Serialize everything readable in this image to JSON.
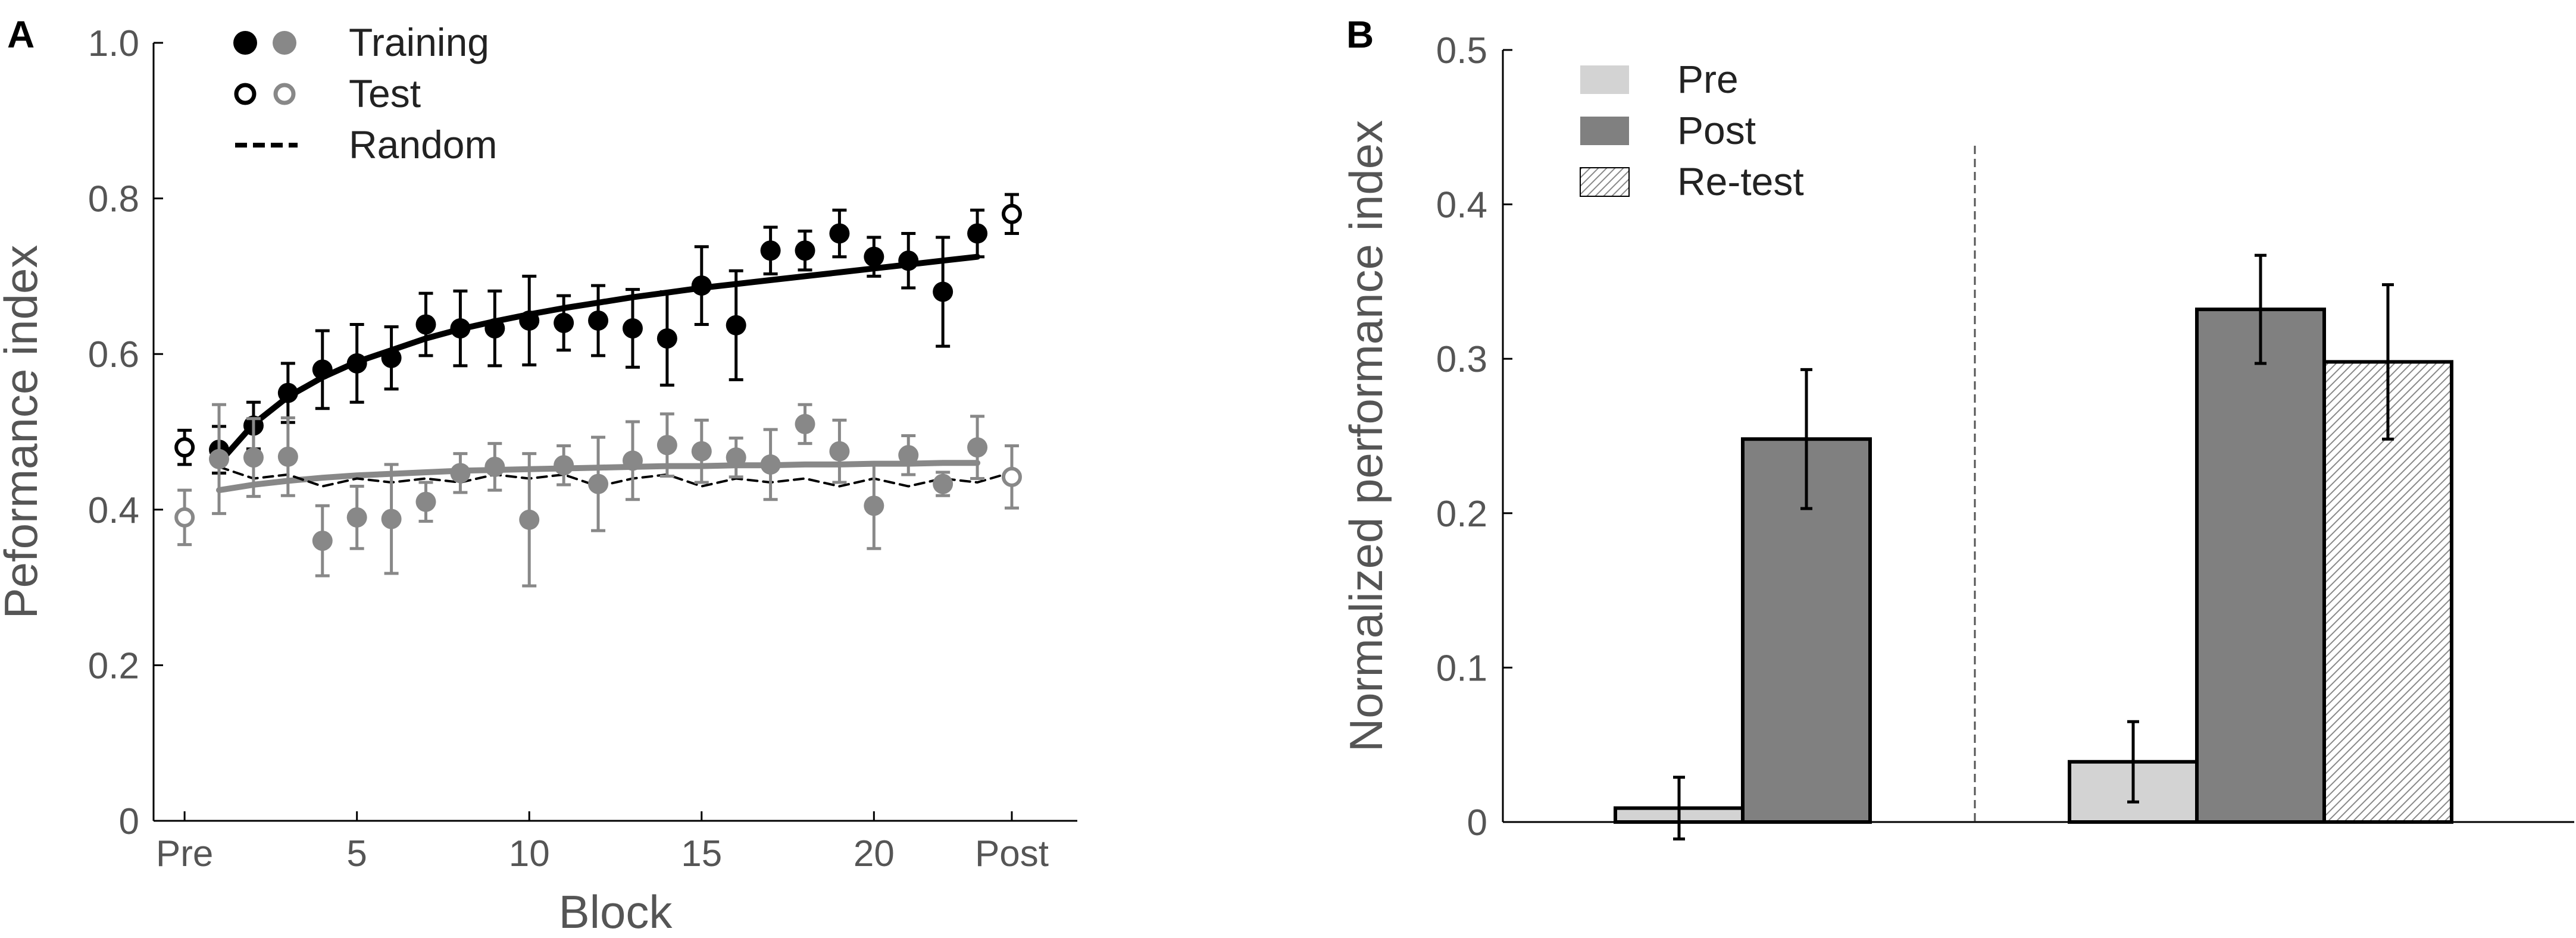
{
  "chart_data": [
    {
      "panel": "A",
      "type": "scatter",
      "xlabel": "Block",
      "ylabel": "Peformance index",
      "xlim": [
        -0.9,
        25.9
      ],
      "ylim": [
        0,
        1.0
      ],
      "xticks": [
        0,
        5,
        10,
        15,
        20,
        24
      ],
      "xtick_labels": [
        "Pre",
        "5",
        "10",
        "15",
        "20",
        "Post"
      ],
      "yticks": [
        0,
        0.2,
        0.4,
        0.6,
        0.8,
        1.0
      ],
      "ytick_labels": [
        "0",
        "0.2",
        "0.4",
        "0.6",
        "0.8",
        "1.0"
      ],
      "legend": [
        {
          "label": "Training",
          "marker": "filled",
          "colors": [
            "#000000",
            "#888888"
          ]
        },
        {
          "label": "Test",
          "marker": "open",
          "colors": [
            "#000000",
            "#888888"
          ]
        },
        {
          "label": "Random",
          "marker": "dashed-line",
          "colors": [
            "#000000"
          ]
        }
      ],
      "series": [
        {
          "name": "Training (black)",
          "color": "#000000",
          "marker": "filled",
          "x": [
            1,
            2,
            3,
            4,
            5,
            6,
            7,
            8,
            9,
            10,
            11,
            12,
            13,
            14,
            15,
            16,
            17,
            18,
            19,
            20,
            21,
            22,
            23
          ],
          "y": [
            0.477,
            0.508,
            0.55,
            0.58,
            0.588,
            0.595,
            0.638,
            0.633,
            0.633,
            0.643,
            0.64,
            0.643,
            0.633,
            0.62,
            0.688,
            0.637,
            0.733,
            0.733,
            0.755,
            0.725,
            0.72,
            0.68,
            0.755
          ],
          "err": [
            0.03,
            0.03,
            0.038,
            0.05,
            0.05,
            0.04,
            0.04,
            0.048,
            0.048,
            0.057,
            0.035,
            0.045,
            0.05,
            0.06,
            0.05,
            0.07,
            0.03,
            0.025,
            0.03,
            0.025,
            0.035,
            0.07,
            0.03
          ]
        },
        {
          "name": "Test (black)",
          "color": "#000000",
          "marker": "open",
          "x": [
            0,
            24
          ],
          "y": [
            0.48,
            0.78
          ],
          "err": [
            0.022,
            0.025
          ]
        },
        {
          "name": "Training (gray)",
          "color": "#888888",
          "marker": "filled",
          "x": [
            1,
            2,
            3,
            4,
            5,
            6,
            7,
            8,
            9,
            10,
            11,
            12,
            13,
            14,
            15,
            16,
            17,
            18,
            19,
            20,
            21,
            22,
            23
          ],
          "y": [
            0.465,
            0.467,
            0.468,
            0.36,
            0.39,
            0.388,
            0.41,
            0.447,
            0.455,
            0.387,
            0.457,
            0.433,
            0.463,
            0.483,
            0.475,
            0.467,
            0.458,
            0.51,
            0.475,
            0.405,
            0.47,
            0.433,
            0.48
          ],
          "err": [
            0.07,
            0.05,
            0.05,
            0.045,
            0.04,
            0.07,
            0.025,
            0.025,
            0.03,
            0.085,
            0.025,
            0.06,
            0.05,
            0.04,
            0.04,
            0.025,
            0.045,
            0.025,
            0.04,
            0.055,
            0.025,
            0.015,
            0.04
          ]
        },
        {
          "name": "Test (gray)",
          "color": "#888888",
          "marker": "open",
          "x": [
            0,
            24
          ],
          "y": [
            0.39,
            0.442
          ],
          "err": [
            0.035,
            0.04
          ]
        },
        {
          "name": "Fit (black)",
          "type": "line",
          "color": "#000000",
          "x": [
            1,
            2,
            3,
            4,
            5,
            6,
            7,
            8,
            9,
            10,
            11,
            12,
            13,
            14,
            15,
            16,
            17,
            18,
            19,
            20,
            21,
            22,
            23
          ],
          "y": [
            0.46,
            0.51,
            0.545,
            0.57,
            0.59,
            0.605,
            0.62,
            0.632,
            0.642,
            0.651,
            0.659,
            0.666,
            0.673,
            0.679,
            0.685,
            0.69,
            0.695,
            0.7,
            0.705,
            0.71,
            0.715,
            0.72,
            0.725
          ]
        },
        {
          "name": "Fit (gray)",
          "type": "line",
          "color": "#888888",
          "x": [
            1,
            2,
            3,
            4,
            5,
            6,
            7,
            8,
            9,
            10,
            11,
            12,
            13,
            14,
            15,
            16,
            17,
            18,
            19,
            20,
            21,
            22,
            23
          ],
          "y": [
            0.425,
            0.432,
            0.437,
            0.441,
            0.444,
            0.446,
            0.448,
            0.45,
            0.451,
            0.452,
            0.453,
            0.454,
            0.455,
            0.456,
            0.456,
            0.457,
            0.457,
            0.458,
            0.458,
            0.459,
            0.459,
            0.46,
            0.46
          ]
        },
        {
          "name": "Random",
          "type": "line",
          "color": "#000000",
          "style": "dashed",
          "x": [
            1,
            2,
            3,
            4,
            5,
            6,
            7,
            8,
            9,
            10,
            11,
            12,
            13,
            14,
            15,
            16,
            17,
            18,
            19,
            20,
            21,
            22,
            23,
            24
          ],
          "y": [
            0.455,
            0.44,
            0.445,
            0.43,
            0.44,
            0.435,
            0.44,
            0.435,
            0.445,
            0.44,
            0.445,
            0.43,
            0.44,
            0.445,
            0.43,
            0.44,
            0.435,
            0.44,
            0.43,
            0.44,
            0.43,
            0.44,
            0.435,
            0.448
          ]
        }
      ]
    },
    {
      "panel": "B",
      "type": "bar",
      "ylabel": "Normalized performance index",
      "ylim": [
        0,
        0.5
      ],
      "yticks": [
        0,
        0.1,
        0.2,
        0.3,
        0.4,
        0.5
      ],
      "ytick_labels": [
        "0",
        "0.1",
        "0.2",
        "0.3",
        "0.4",
        "0.5"
      ],
      "legend": [
        {
          "label": "Pre",
          "fill": "#d3d3d3"
        },
        {
          "label": "Post",
          "fill": "#808080"
        },
        {
          "label": "Re-test",
          "fill": "hatch"
        }
      ],
      "groups": [
        {
          "bars": [
            {
              "series": "Pre",
              "value": 0.009,
              "err": 0.02
            },
            {
              "series": "Post",
              "value": 0.248,
              "err": 0.045
            }
          ]
        },
        {
          "bars": [
            {
              "series": "Pre",
              "value": 0.039,
              "err": 0.026
            },
            {
              "series": "Post",
              "value": 0.332,
              "err": 0.035
            },
            {
              "series": "Re-test",
              "value": 0.298,
              "err": 0.05
            }
          ]
        }
      ]
    }
  ]
}
